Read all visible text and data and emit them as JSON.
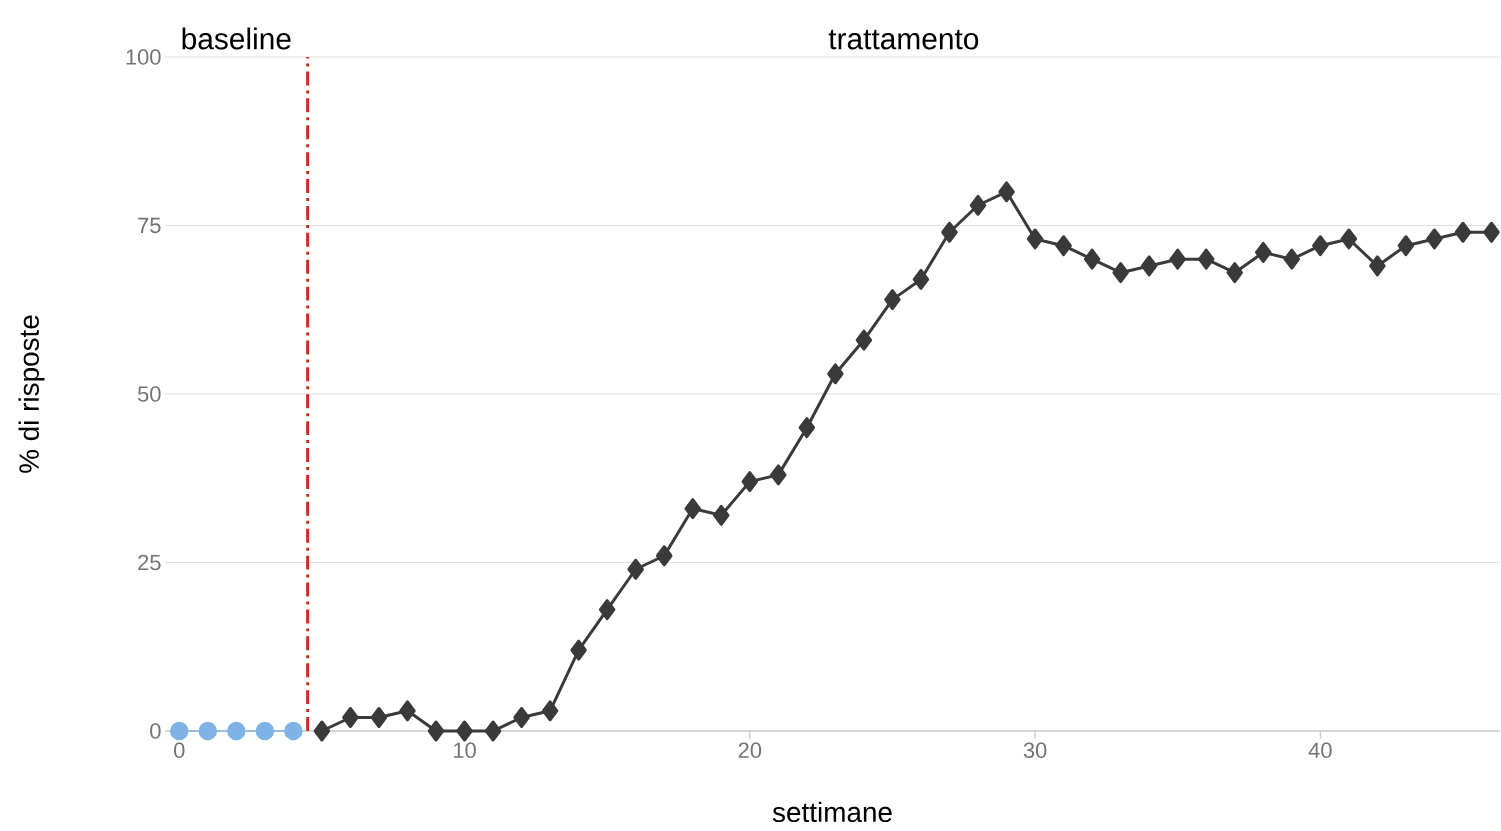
{
  "chart_data": {
    "type": "line",
    "xlabel": "settimane",
    "ylabel": "% di risposte",
    "xlim": [
      -0.5,
      46.3
    ],
    "ylim": [
      0,
      100
    ],
    "xticks": [
      0,
      10,
      20,
      30,
      40
    ],
    "yticks": [
      0,
      25,
      50,
      75,
      100
    ],
    "grid": "y",
    "series": [
      {
        "color": "#7fb2e5",
        "marker": "circle",
        "x": [
          0,
          1,
          2,
          3,
          4
        ],
        "values": [
          0,
          0,
          0,
          0,
          0
        ]
      },
      {
        "color": "#3a3a3a",
        "marker": "diamond",
        "x": [
          5,
          6,
          7,
          8,
          9,
          10,
          11,
          12,
          13,
          14,
          15,
          16,
          17,
          18,
          19,
          20,
          21,
          22,
          23,
          24,
          25,
          26,
          27,
          28,
          29,
          30,
          31,
          32,
          33,
          34,
          35,
          36,
          37,
          38,
          39,
          40,
          41,
          42,
          43,
          44,
          45,
          46
        ],
        "values": [
          0,
          2,
          2,
          3,
          0,
          0,
          0,
          2,
          3,
          12,
          18,
          24,
          26,
          33,
          32,
          37,
          38,
          45,
          53,
          58,
          64,
          67,
          74,
          78,
          80,
          73,
          72,
          70,
          68,
          69,
          70,
          70,
          68,
          71,
          70,
          72,
          73,
          69,
          72,
          73,
          74,
          74
        ]
      }
    ],
    "ref_lines": [
      {
        "axis": "x",
        "value": 4.5,
        "color": "#d42a1e",
        "line_style": "dashdot"
      }
    ],
    "annotations": [
      "baseline",
      "trattamento"
    ]
  }
}
